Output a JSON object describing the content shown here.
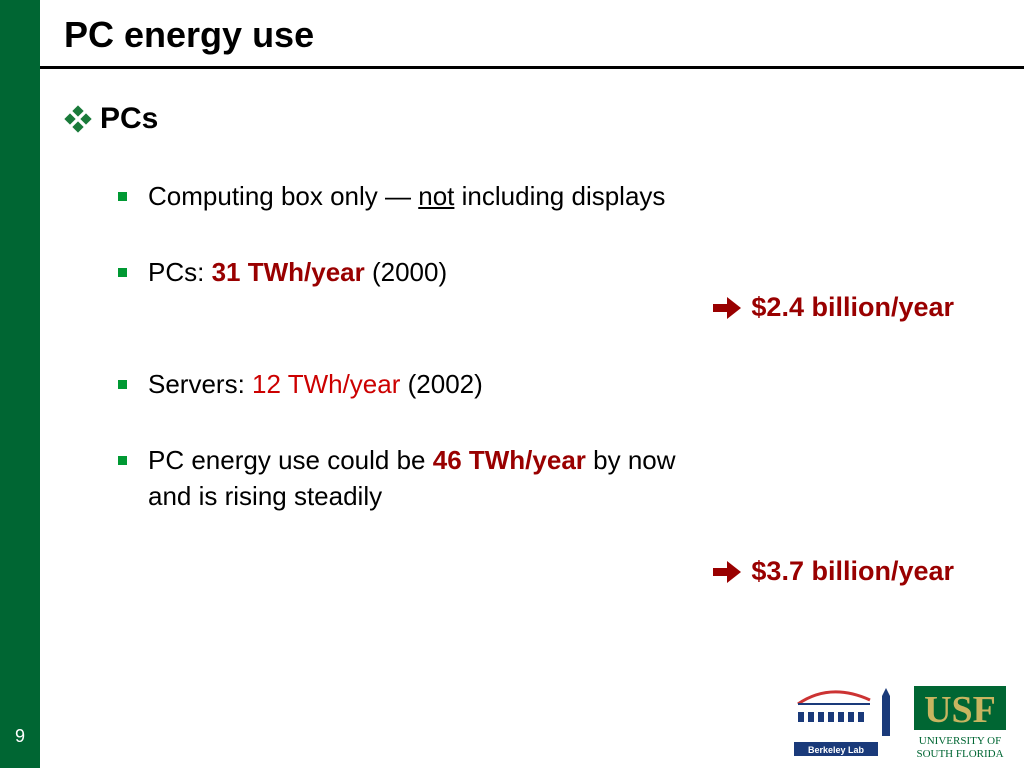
{
  "slide": {
    "number": "9",
    "title": "PC energy use",
    "heading": "PCs"
  },
  "bullets": [
    {
      "pre": "Computing box only — ",
      "underline": "not",
      "post": " including displays"
    },
    {
      "pre": "PCs: ",
      "value": "31 TWh/year",
      "post": " (2000)"
    },
    {
      "pre": "Servers: ",
      "value": "12 TWh/year",
      "post": " (2002)"
    },
    {
      "pre": "PC energy use could be ",
      "value": "46 TWh/year",
      "post": " by now",
      "line2": "and is rising steadily"
    }
  ],
  "results": [
    {
      "text": "$2.4 billion/year"
    },
    {
      "text": "$3.7 billion/year"
    }
  ],
  "logos": {
    "berkeley": "Berkeley Lab",
    "usf": "USF",
    "usf_line1": "UNIVERSITY OF",
    "usf_line2": "SOUTH FLORIDA"
  },
  "colors": {
    "sidebar": "#006633",
    "accent_red": "#990000",
    "bullet_green": "#009933"
  }
}
